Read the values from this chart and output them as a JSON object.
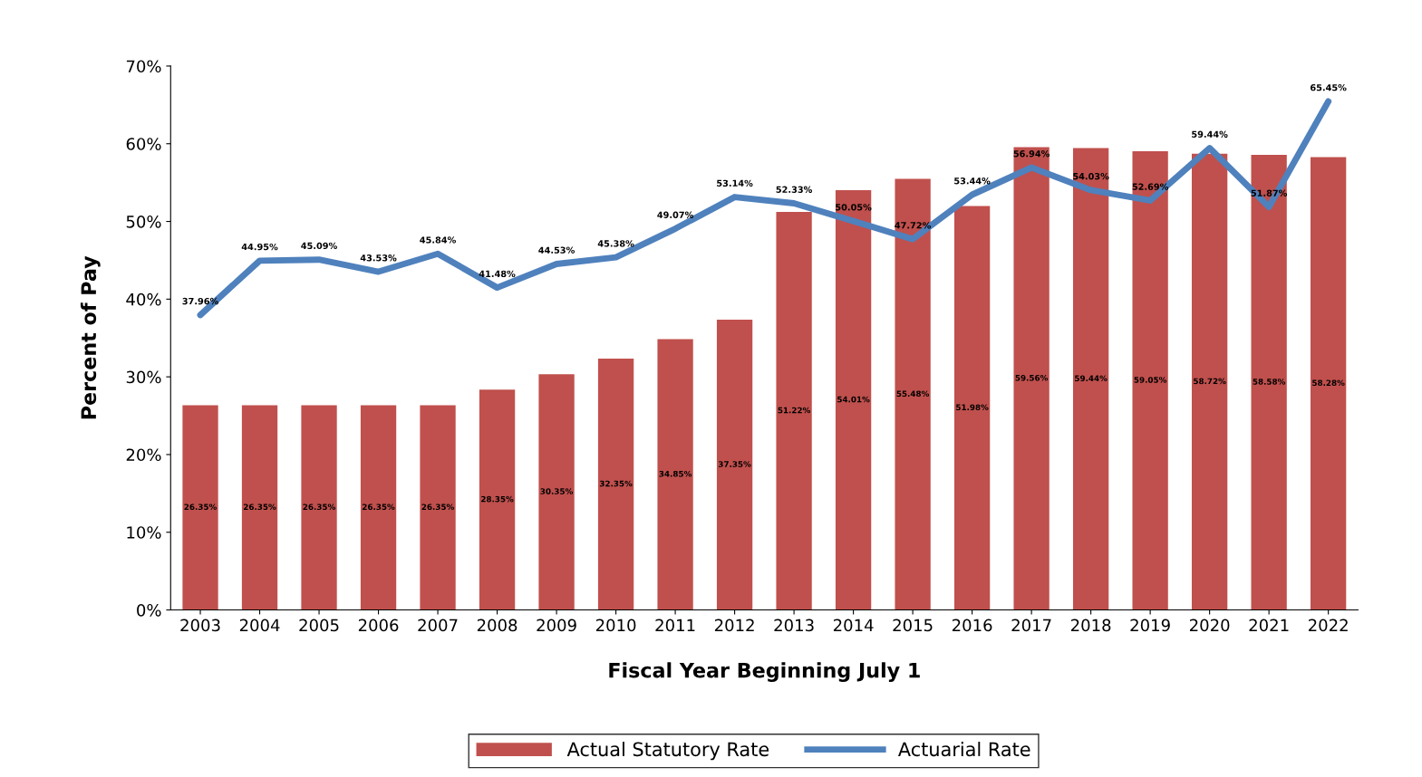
{
  "chart_data": {
    "type": "bar",
    "xlabel": "Fiscal Year Beginning July 1",
    "ylabel": "Percent of Pay",
    "categories": [
      "2003",
      "2004",
      "2005",
      "2006",
      "2007",
      "2008",
      "2009",
      "2010",
      "2011",
      "2012",
      "2013",
      "2014",
      "2015",
      "2016",
      "2017",
      "2018",
      "2019",
      "2020",
      "2021",
      "2022"
    ],
    "series": [
      {
        "name": "Actual Statutory Rate",
        "color": "#c0504d",
        "values": [
          26.35,
          26.35,
          26.35,
          26.35,
          26.35,
          28.35,
          30.35,
          32.35,
          34.85,
          37.35,
          51.22,
          54.01,
          55.48,
          51.98,
          59.56,
          59.44,
          59.05,
          58.72,
          58.58,
          58.28
        ],
        "value_labels": [
          "26.35%",
          "26.35%",
          "26.35%",
          "26.35%",
          "26.35%",
          "28.35%",
          "30.35%",
          "32.35%",
          "34.85%",
          "37.35%",
          "51.22%",
          "54.01%",
          "55.48%",
          "51.98%",
          "59.56%",
          "59.44%",
          "59.05%",
          "58.72%",
          "58.58%",
          "58.28%"
        ]
      },
      {
        "name": "Actuarial Rate",
        "type": "line",
        "color": "#4f81bd",
        "values": [
          37.96,
          44.95,
          45.09,
          43.53,
          45.84,
          41.48,
          44.53,
          45.38,
          49.07,
          53.14,
          52.33,
          50.05,
          47.72,
          53.44,
          56.94,
          54.03,
          52.69,
          59.44,
          51.87,
          65.45
        ],
        "value_labels": [
          "37.96%",
          "44.95%",
          "45.09%",
          "43.53%",
          "45.84%",
          "41.48%",
          "44.53%",
          "45.38%",
          "49.07%",
          "53.14%",
          "52.33%",
          "50.05%",
          "47.72%",
          "53.44%",
          "56.94%",
          "54.03%",
          "52.69%",
          "59.44%",
          "51.87%",
          "65.45%"
        ]
      }
    ],
    "ylim": [
      0,
      70
    ],
    "yticks": [
      {
        "value": 0,
        "label": "0%"
      },
      {
        "value": 10,
        "label": "10%"
      },
      {
        "value": 20,
        "label": "20%"
      },
      {
        "value": 30,
        "label": "30%"
      },
      {
        "value": 40,
        "label": "40%"
      },
      {
        "value": 50,
        "label": "50%"
      },
      {
        "value": 60,
        "label": "60%"
      },
      {
        "value": 70,
        "label": "70%"
      }
    ],
    "grid": false,
    "legend": "bottom",
    "marker": "none",
    "line_style": "solid"
  }
}
